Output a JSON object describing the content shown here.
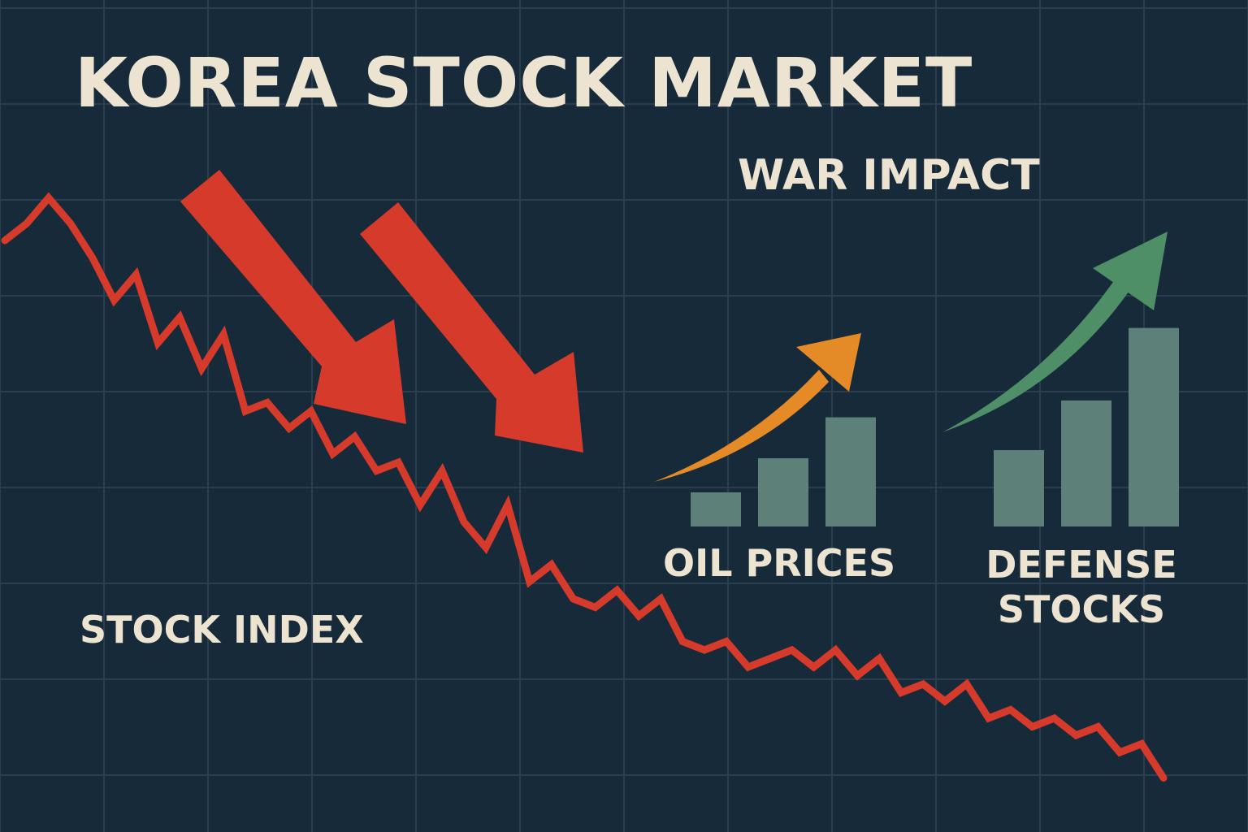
{
  "title": "KOREA STOCK MARKET",
  "subtitle": "WAR IMPACT",
  "colors": {
    "background": "#172a3a",
    "grid": "#2a3e50",
    "index_line": "#d63a2a",
    "down_arrow": "#d63a2a",
    "oil_arrow": "#e48a26",
    "defense_arrow": "#4f8f67",
    "bars": "#5d8078",
    "text": "#ede3d1"
  },
  "chart_data": [
    {
      "type": "line",
      "series": [
        {
          "name": "STOCK INDEX",
          "values": [
            78,
            80,
            83,
            80,
            76,
            71,
            74,
            66,
            69,
            63,
            67,
            58,
            59,
            56,
            58,
            53,
            55,
            51,
            52,
            47,
            51,
            45,
            42,
            47,
            38,
            40,
            36,
            35,
            37,
            34,
            36,
            31,
            30,
            31,
            28,
            29,
            30,
            28,
            30,
            27,
            29,
            25,
            26,
            24,
            26,
            22,
            23,
            21,
            22,
            20,
            21,
            18,
            19,
            15
          ]
        }
      ],
      "trend": "down",
      "grid": true
    },
    {
      "type": "bar",
      "series": [
        {
          "name": "OIL PRICES",
          "values": [
            1,
            2,
            3.2
          ]
        }
      ],
      "trend": "up"
    },
    {
      "type": "bar",
      "series": [
        {
          "name": "DEFENSE STOCKS",
          "lines": [
            "DEFENSE",
            "STOCKS"
          ],
          "values": [
            2,
            3.3,
            5.2
          ]
        }
      ],
      "trend": "up"
    }
  ]
}
